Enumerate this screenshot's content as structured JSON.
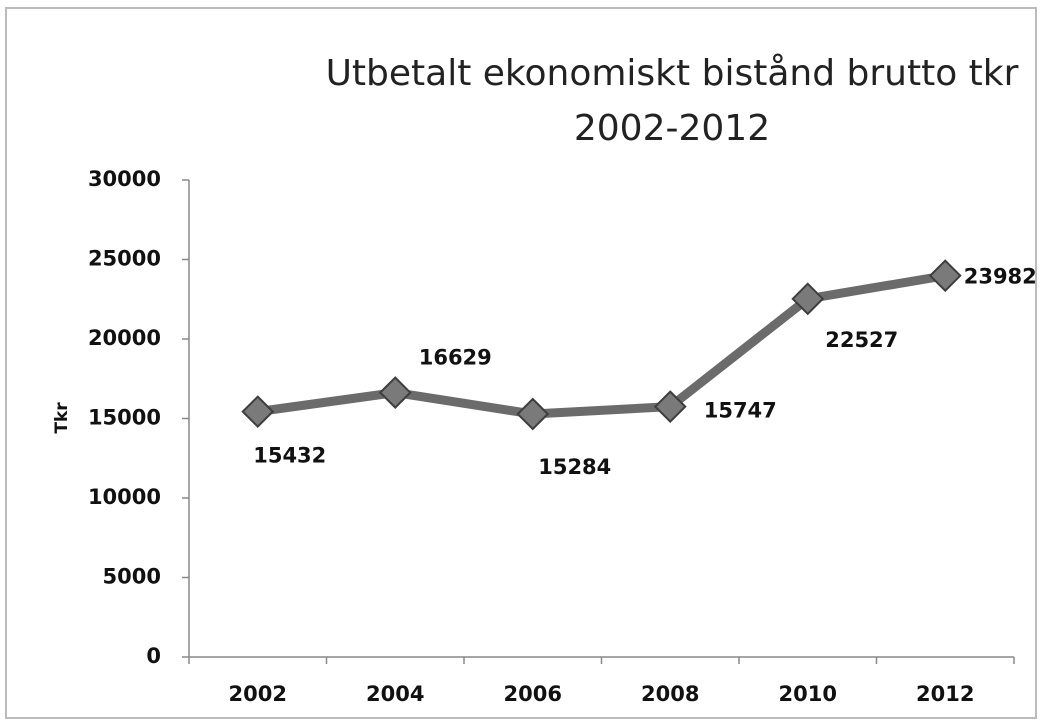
{
  "chart_data": {
    "type": "line",
    "title": "Utbetalt ekonomiskt bistånd brutto tkr",
    "subtitle": "2002-2012",
    "y_label": "Tkr",
    "categories": [
      "2002",
      "2004",
      "2006",
      "2008",
      "2010",
      "2012"
    ],
    "series": [
      {
        "name": "Tkr",
        "color": "#6b6b6b",
        "values": [
          15432,
          16629,
          15284,
          15747,
          22527,
          23982
        ]
      }
    ],
    "ylim": [
      0,
      30000
    ],
    "yticks": [
      0,
      5000,
      10000,
      15000,
      20000,
      25000,
      30000
    ],
    "grid": false
  }
}
